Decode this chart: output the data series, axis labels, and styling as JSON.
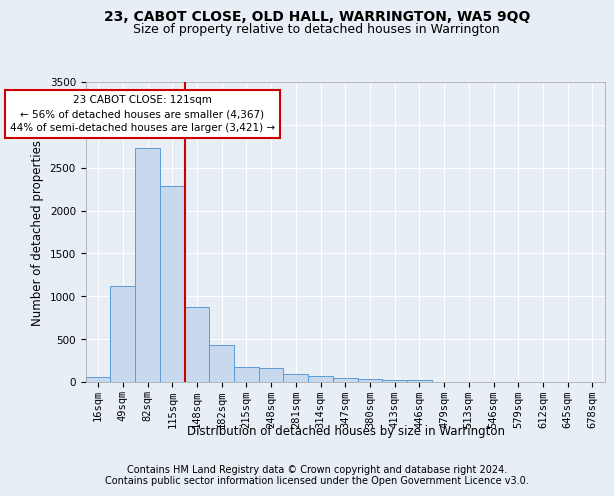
{
  "title": "23, CABOT CLOSE, OLD HALL, WARRINGTON, WA5 9QQ",
  "subtitle": "Size of property relative to detached houses in Warrington",
  "xlabel": "Distribution of detached houses by size in Warrington",
  "ylabel": "Number of detached properties",
  "bar_labels": [
    "16sqm",
    "49sqm",
    "82sqm",
    "115sqm",
    "148sqm",
    "182sqm",
    "215sqm",
    "248sqm",
    "281sqm",
    "314sqm",
    "347sqm",
    "380sqm",
    "413sqm",
    "446sqm",
    "479sqm",
    "513sqm",
    "546sqm",
    "579sqm",
    "612sqm",
    "645sqm",
    "678sqm"
  ],
  "bar_values": [
    55,
    1115,
    2730,
    2290,
    875,
    430,
    175,
    165,
    95,
    65,
    50,
    32,
    25,
    25,
    0,
    0,
    0,
    0,
    0,
    0,
    0
  ],
  "bar_color": "#c9d9ed",
  "bar_edge_color": "#5b9bd5",
  "annotation_text": "23 CABOT CLOSE: 121sqm\n← 56% of detached houses are smaller (4,367)\n44% of semi-detached houses are larger (3,421) →",
  "annotation_box_color": "#ffffff",
  "annotation_box_edge": "#cc0000",
  "line_color": "#cc0000",
  "ylim": [
    0,
    3500
  ],
  "yticks": [
    0,
    500,
    1000,
    1500,
    2000,
    2500,
    3000,
    3500
  ],
  "footer_line1": "Contains HM Land Registry data © Crown copyright and database right 2024.",
  "footer_line2": "Contains public sector information licensed under the Open Government Licence v3.0.",
  "background_color": "#e8eef5",
  "axes_background": "#e8eef5",
  "grid_color": "#ffffff",
  "title_fontsize": 10,
  "subtitle_fontsize": 9,
  "axis_label_fontsize": 8.5,
  "tick_fontsize": 7.5,
  "footer_fontsize": 7
}
